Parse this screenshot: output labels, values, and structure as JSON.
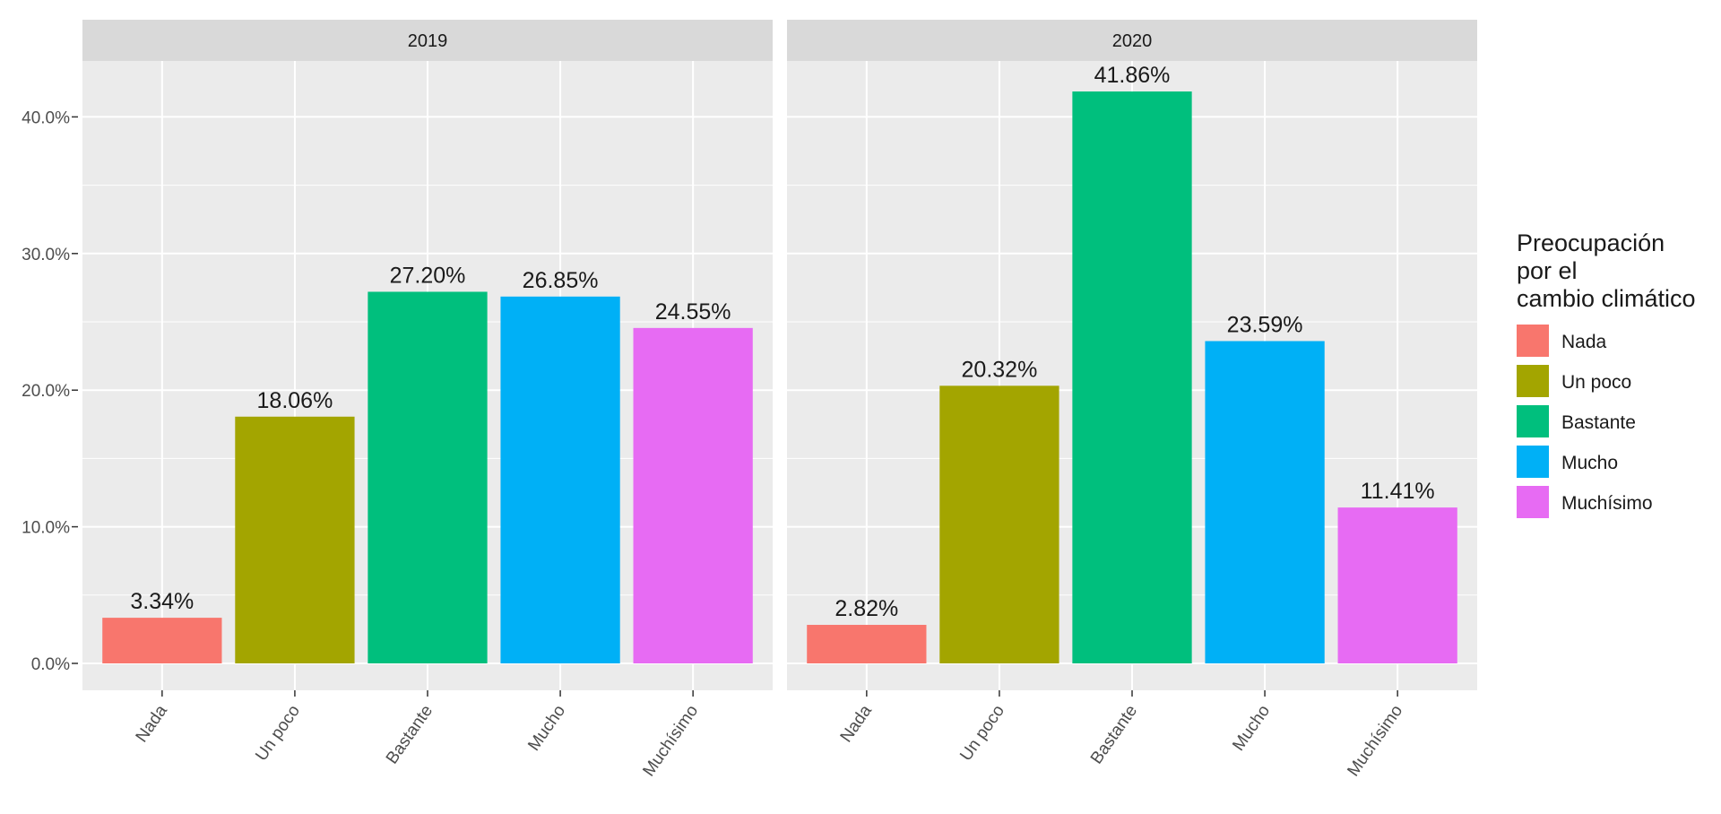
{
  "chart_data": {
    "type": "bar",
    "facets": [
      "2019",
      "2020"
    ],
    "categories": [
      "Nada",
      "Un poco",
      "Bastante",
      "Mucho",
      "Muchísimo"
    ],
    "panels": [
      {
        "name": "2019",
        "values": [
          3.34,
          18.06,
          27.2,
          26.85,
          24.55
        ],
        "labels": [
          "3.34%",
          "18.06%",
          "27.20%",
          "26.85%",
          "24.55%"
        ]
      },
      {
        "name": "2020",
        "values": [
          2.82,
          20.32,
          41.86,
          23.59,
          11.41
        ],
        "labels": [
          "2.82%",
          "20.32%",
          "41.86%",
          "23.59%",
          "11.41%"
        ]
      }
    ],
    "y_ticks": [
      0,
      10,
      20,
      30,
      40
    ],
    "y_tick_labels": [
      "0.0%",
      "10.0%",
      "20.0%",
      "30.0%",
      "40.0%"
    ],
    "ylim": [
      0,
      44
    ],
    "grid": true,
    "xlabel": "",
    "ylabel": "",
    "legend": {
      "title_lines": [
        "Preocupación",
        "por el",
        "cambio climático"
      ],
      "position": "right",
      "entries": [
        "Nada",
        "Un poco",
        "Bastante",
        "Mucho",
        "Muchísimo"
      ]
    },
    "colors": [
      "#F8766D",
      "#A3A500",
      "#00BF7D",
      "#00B0F6",
      "#E76BF3"
    ],
    "panel_background": "#EBEBEB",
    "strip_background": "#D9D9D9"
  }
}
